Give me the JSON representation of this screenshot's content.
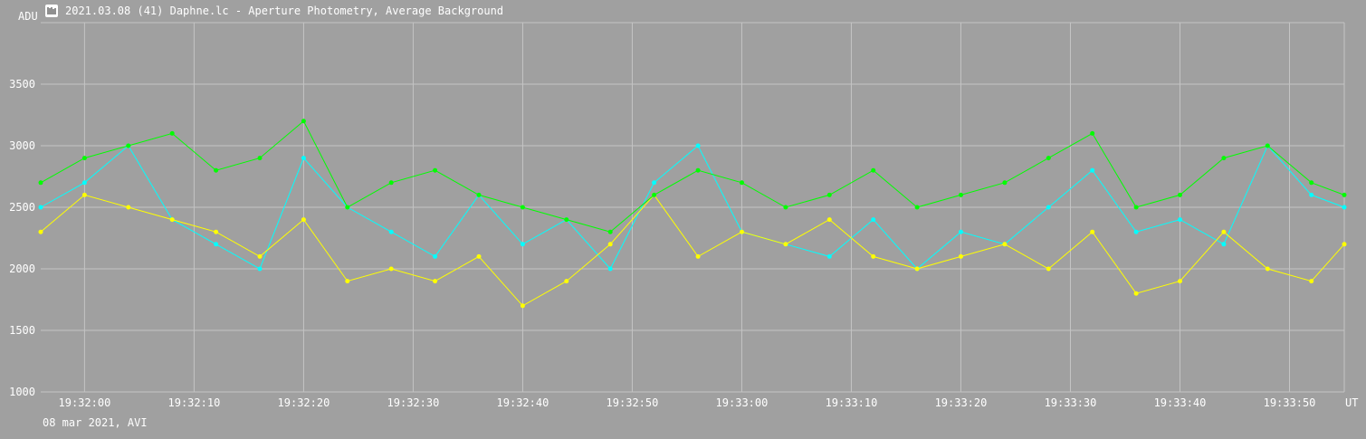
{
  "window": {
    "title": "2021.03.08 (41) Daphne.lc - Aperture Photometry, Average Background",
    "icon": "lightcurve-app-icon"
  },
  "footer": {
    "note": "08 mar 2021, AVI"
  },
  "chart_data": {
    "type": "line",
    "title": "2021.03.08 (41) Daphne.lc - Aperture Photometry, Average Background",
    "ylabel": "ADU",
    "xlabel": "UT",
    "ylim": [
      1000,
      4000
    ],
    "yticks": [
      1000,
      1500,
      2000,
      2500,
      3000,
      3500
    ],
    "xlim": [
      "19:31:56",
      "19:33:55"
    ],
    "xticks": [
      "19:32:00",
      "19:32:10",
      "19:32:20",
      "19:32:30",
      "19:32:40",
      "19:32:50",
      "19:33:00",
      "19:33:10",
      "19:33:20",
      "19:33:30",
      "19:33:40",
      "19:33:50"
    ],
    "grid": true,
    "legend": "none",
    "series": [
      {
        "color": "#00ffff",
        "x": [
          "19:31:56",
          "19:32:00",
          "19:32:04",
          "19:32:08",
          "19:32:12",
          "19:32:16",
          "19:32:20",
          "19:32:24",
          "19:32:28",
          "19:32:32",
          "19:32:36",
          "19:32:40",
          "19:32:44",
          "19:32:48",
          "19:32:52",
          "19:32:56",
          "19:33:00",
          "19:33:04",
          "19:33:08",
          "19:33:12",
          "19:33:16",
          "19:33:20",
          "19:33:24",
          "19:33:28",
          "19:33:32",
          "19:33:36",
          "19:33:40",
          "19:33:44",
          "19:33:48",
          "19:33:52",
          "19:33:55"
        ],
        "y": [
          2500,
          2700,
          3000,
          2400,
          2200,
          2000,
          2900,
          2500,
          2300,
          2100,
          2600,
          2200,
          2400,
          2000,
          2700,
          3000,
          2300,
          2200,
          2100,
          2400,
          2000,
          2300,
          2200,
          2500,
          2800,
          2300,
          2400,
          2200,
          3000,
          2600,
          2500
        ]
      },
      {
        "color": "#ffff00",
        "x": [
          "19:31:56",
          "19:32:00",
          "19:32:04",
          "19:32:08",
          "19:32:12",
          "19:32:16",
          "19:32:20",
          "19:32:24",
          "19:32:28",
          "19:32:32",
          "19:32:36",
          "19:32:40",
          "19:32:44",
          "19:32:48",
          "19:32:52",
          "19:32:56",
          "19:33:00",
          "19:33:04",
          "19:33:08",
          "19:33:12",
          "19:33:16",
          "19:33:20",
          "19:33:24",
          "19:33:28",
          "19:33:32",
          "19:33:36",
          "19:33:40",
          "19:33:44",
          "19:33:48",
          "19:33:52",
          "19:33:55"
        ],
        "y": [
          2300,
          2600,
          2500,
          2400,
          2300,
          2100,
          2400,
          1900,
          2000,
          1900,
          2100,
          1700,
          1900,
          2200,
          2600,
          2100,
          2300,
          2200,
          2400,
          2100,
          2000,
          2100,
          2200,
          2000,
          2300,
          1800,
          1900,
          2300,
          2000,
          1900,
          2200
        ]
      },
      {
        "color": "#00ff00",
        "x": [
          "19:31:56",
          "19:32:00",
          "19:32:04",
          "19:32:08",
          "19:32:12",
          "19:32:16",
          "19:32:20",
          "19:32:24",
          "19:32:28",
          "19:32:32",
          "19:32:36",
          "19:32:40",
          "19:32:44",
          "19:32:48",
          "19:32:52",
          "19:32:56",
          "19:33:00",
          "19:33:04",
          "19:33:08",
          "19:33:12",
          "19:33:16",
          "19:33:20",
          "19:33:24",
          "19:33:28",
          "19:33:32",
          "19:33:36",
          "19:33:40",
          "19:33:44",
          "19:33:48",
          "19:33:52",
          "19:33:55"
        ],
        "y": [
          2700,
          2900,
          3000,
          3100,
          2800,
          2900,
          3200,
          2500,
          2700,
          2800,
          2600,
          2500,
          2400,
          2300,
          2600,
          2800,
          2700,
          2500,
          2600,
          2800,
          2500,
          2600,
          2700,
          2900,
          3100,
          2500,
          2600,
          2900,
          3000,
          2700,
          2600
        ]
      }
    ]
  }
}
